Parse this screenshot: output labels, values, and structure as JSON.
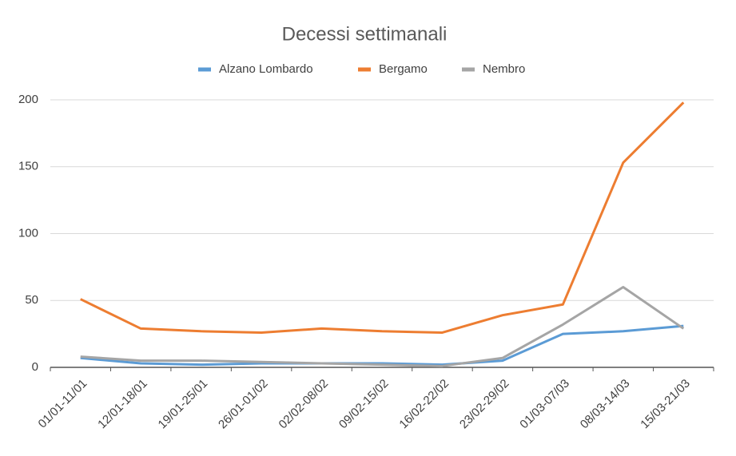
{
  "chart_data": {
    "type": "line",
    "title": "Decessi settimanali",
    "categories": [
      "01/01-11/01",
      "12/01-18/01",
      "19/01-25/01",
      "26/01-01/02",
      "02/02-08/02",
      "09/02-15/02",
      "16/02-22/02",
      "23/02-29/02",
      "01/03-07/03",
      "08/03-14/03",
      "15/03-21/03"
    ],
    "series": [
      {
        "name": "Alzano Lombardo",
        "color": "#5b9bd5",
        "values": [
          7,
          3,
          2,
          3,
          3,
          3,
          2,
          5,
          25,
          27,
          31
        ]
      },
      {
        "name": "Bergamo",
        "color": "#ed7d31",
        "values": [
          51,
          29,
          27,
          26,
          29,
          27,
          26,
          39,
          47,
          153,
          198
        ]
      },
      {
        "name": "Nembro",
        "color": "#a5a5a5",
        "values": [
          8,
          5,
          5,
          4,
          3,
          2,
          1,
          7,
          32,
          60,
          29
        ]
      }
    ],
    "ylim": [
      0,
      200
    ],
    "yticks": [
      0,
      50,
      100,
      150,
      200
    ],
    "grid": true,
    "legend": "top"
  }
}
